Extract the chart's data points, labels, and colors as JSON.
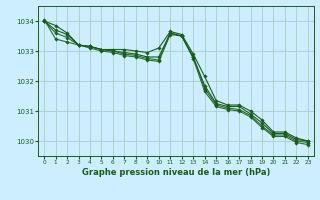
{
  "title": "Graphe pression niveau de la mer (hPa)",
  "background_color": "#cceeff",
  "grid_color": "#aacccc",
  "line_color_dark": "#1a5c1a",
  "line_color_mid": "#2a6e2a",
  "xlim": [
    -0.5,
    23.5
  ],
  "ylim": [
    1029.5,
    1034.5
  ],
  "yticks": [
    1030,
    1031,
    1032,
    1033,
    1034
  ],
  "xticks": [
    0,
    1,
    2,
    3,
    4,
    5,
    6,
    7,
    8,
    9,
    10,
    11,
    12,
    13,
    14,
    15,
    16,
    17,
    18,
    19,
    20,
    21,
    22,
    23
  ],
  "series1": {
    "x": [
      0,
      1,
      2,
      3,
      4,
      5,
      6,
      7,
      8,
      9,
      10,
      11,
      12,
      13,
      14,
      15,
      16,
      17,
      18,
      19,
      20,
      21,
      22,
      23
    ],
    "y": [
      1034.0,
      1033.85,
      1033.6,
      1033.2,
      1033.15,
      1033.05,
      1033.05,
      1033.05,
      1033.0,
      1032.95,
      1033.1,
      1033.65,
      1033.55,
      1032.9,
      1032.15,
      1031.35,
      1031.2,
      1031.2,
      1031.0,
      1030.7,
      1030.3,
      1030.3,
      1030.1,
      1030.0
    ]
  },
  "series2": {
    "x": [
      0,
      1,
      2,
      3,
      4,
      5,
      6,
      7,
      8,
      9,
      10,
      11,
      12,
      13,
      14,
      15,
      16,
      17,
      18,
      19,
      20,
      21,
      22,
      23
    ],
    "y": [
      1034.0,
      1033.7,
      1033.55,
      1033.2,
      1033.15,
      1033.05,
      1033.0,
      1032.95,
      1032.9,
      1032.8,
      1032.8,
      1033.6,
      1033.5,
      1032.8,
      1031.85,
      1031.25,
      1031.15,
      1031.15,
      1030.9,
      1030.6,
      1030.25,
      1030.25,
      1030.05,
      1030.0
    ]
  },
  "series3": {
    "x": [
      0,
      1,
      2,
      3,
      4,
      5,
      6,
      7,
      8,
      9,
      10,
      11,
      12,
      13,
      14,
      15,
      16,
      17,
      18,
      19,
      20,
      21,
      22,
      23
    ],
    "y": [
      1034.0,
      1033.6,
      1033.45,
      1033.2,
      1033.15,
      1033.05,
      1033.0,
      1032.9,
      1032.85,
      1032.75,
      1032.7,
      1033.6,
      1033.5,
      1032.8,
      1031.75,
      1031.2,
      1031.1,
      1031.05,
      1030.85,
      1030.5,
      1030.2,
      1030.2,
      1030.0,
      1029.95
    ]
  },
  "series4": {
    "x": [
      0,
      1,
      2,
      3,
      4,
      5,
      6,
      7,
      8,
      9,
      10,
      11,
      12,
      13,
      14,
      15,
      16,
      17,
      18,
      19,
      20,
      21,
      22,
      23
    ],
    "y": [
      1034.05,
      1033.4,
      1033.3,
      1033.2,
      1033.1,
      1033.0,
      1032.95,
      1032.85,
      1032.8,
      1032.7,
      1032.65,
      1033.55,
      1033.5,
      1032.75,
      1031.65,
      1031.15,
      1031.05,
      1031.0,
      1030.8,
      1030.45,
      1030.15,
      1030.15,
      1029.95,
      1029.88
    ]
  }
}
